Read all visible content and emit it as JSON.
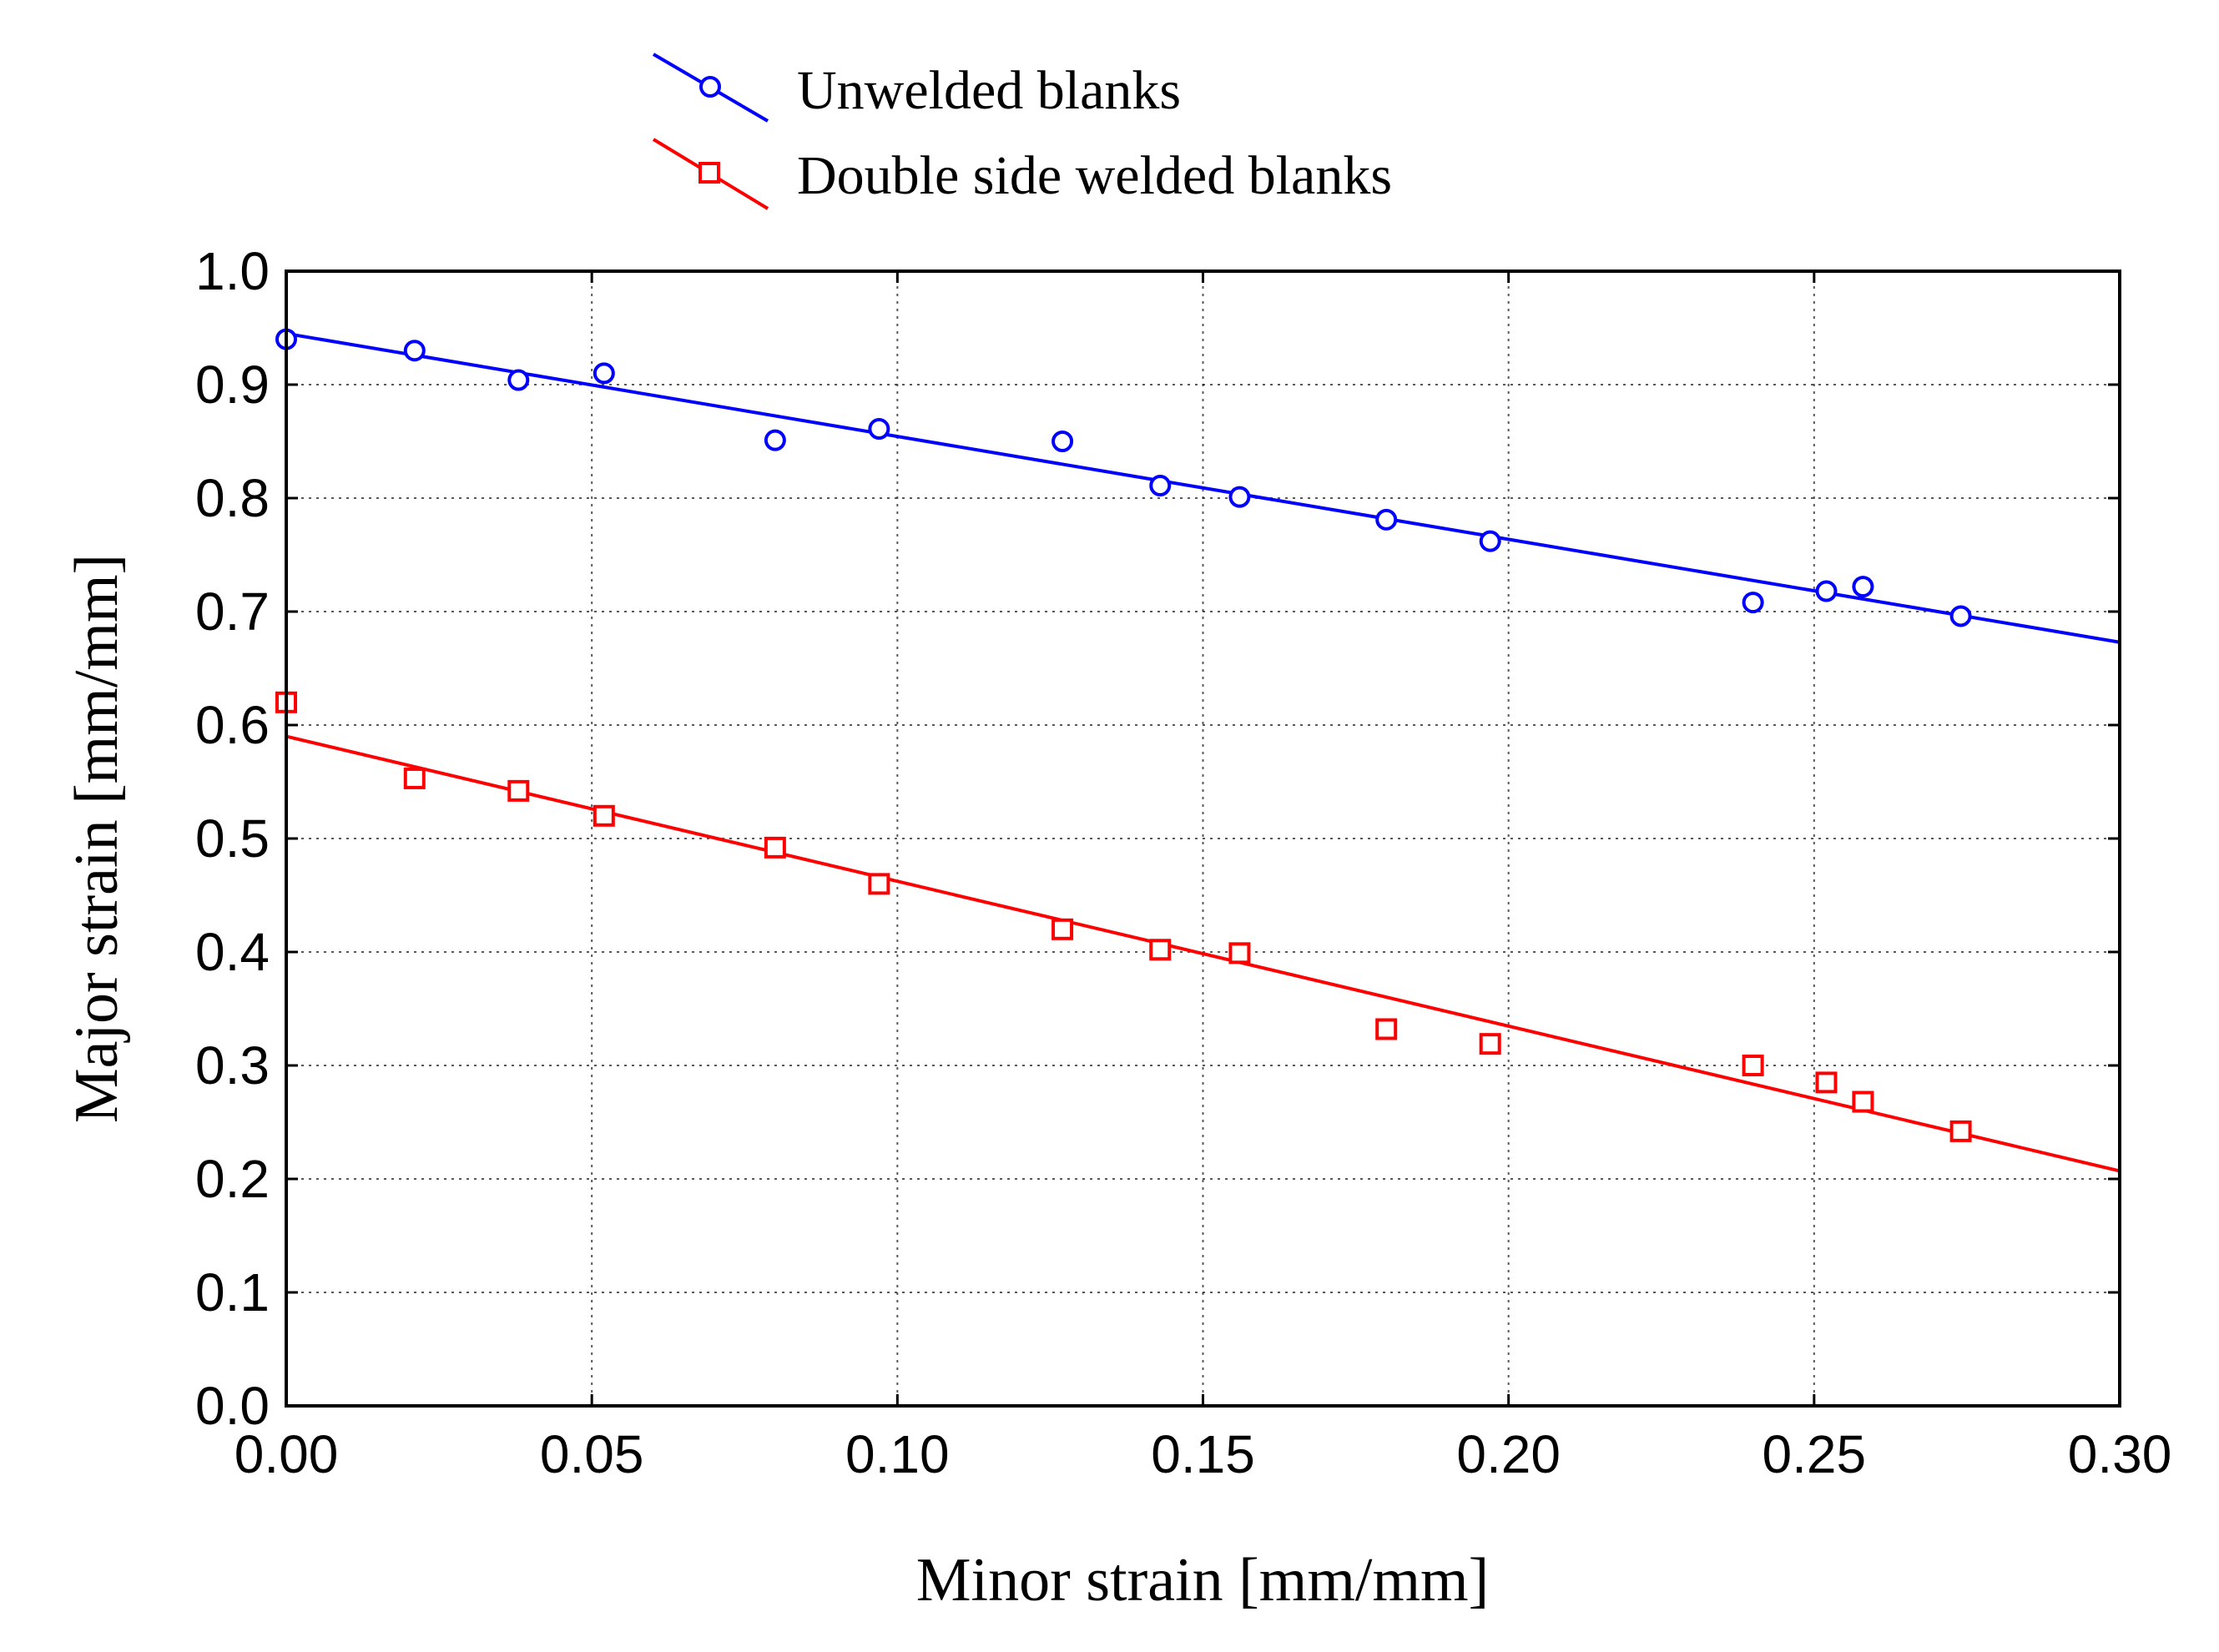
{
  "chart_data": {
    "type": "scatter",
    "xlabel": "Minor strain [mm/mm]",
    "ylabel": "Major strain [mm/mm]",
    "xlim": [
      0.0,
      0.3
    ],
    "ylim": [
      0.0,
      1.0
    ],
    "grid": true,
    "legend_position": "top-left-outside",
    "x_ticks": [
      "0.00",
      "0.05",
      "0.10",
      "0.15",
      "0.20",
      "0.25",
      "0.30"
    ],
    "y_ticks": [
      "0.0",
      "0.1",
      "0.2",
      "0.3",
      "0.4",
      "0.5",
      "0.6",
      "0.7",
      "0.8",
      "0.9",
      "1.0"
    ],
    "series": [
      {
        "name": "Unwelded blanks",
        "marker": "circle",
        "color": "#0000ff",
        "x": [
          0.0,
          0.021,
          0.038,
          0.052,
          0.08,
          0.097,
          0.127,
          0.143,
          0.156,
          0.18,
          0.197,
          0.24,
          0.252,
          0.258,
          0.274
        ],
        "y": [
          0.94,
          0.93,
          0.904,
          0.91,
          0.851,
          0.861,
          0.85,
          0.811,
          0.801,
          0.781,
          0.762,
          0.708,
          0.718,
          0.722,
          0.696
        ],
        "fit": {
          "x": [
            0.0,
            0.3
          ],
          "y": [
            0.945,
            0.673
          ]
        }
      },
      {
        "name": "Double side welded blanks",
        "marker": "square",
        "color": "#ff0000",
        "x": [
          0.0,
          0.021,
          0.038,
          0.052,
          0.08,
          0.097,
          0.127,
          0.143,
          0.156,
          0.18,
          0.197,
          0.24,
          0.252,
          0.258,
          0.274
        ],
        "y": [
          0.62,
          0.553,
          0.542,
          0.52,
          0.492,
          0.46,
          0.42,
          0.402,
          0.399,
          0.332,
          0.319,
          0.3,
          0.285,
          0.268,
          0.242
        ],
        "fit": {
          "x": [
            0.0,
            0.3
          ],
          "y": [
            0.59,
            0.207
          ]
        }
      }
    ]
  }
}
